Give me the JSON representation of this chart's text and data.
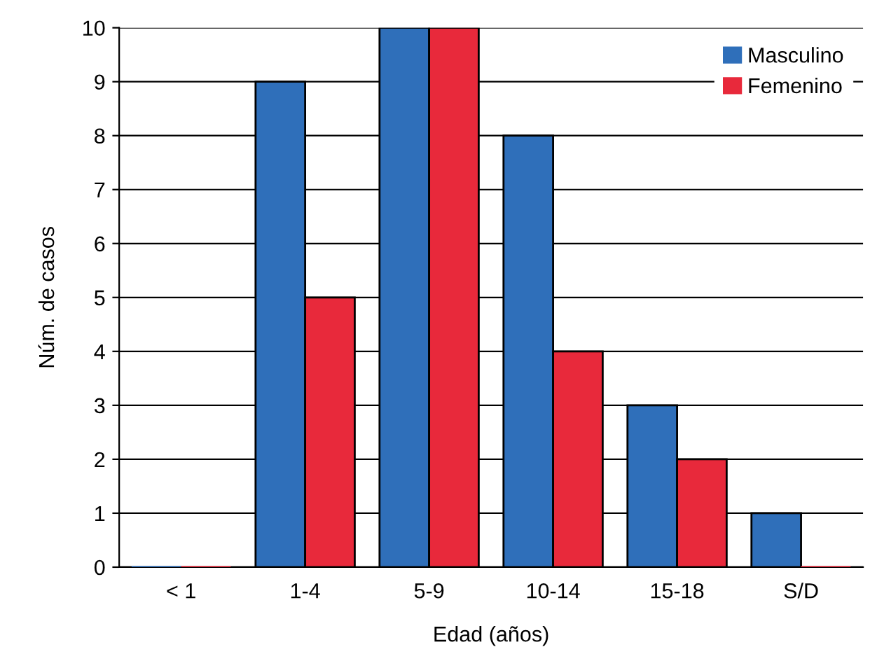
{
  "chart_data": {
    "type": "bar",
    "xlabel": "Edad (años)",
    "ylabel": "Núm. de casos",
    "categories": [
      "< 1",
      "1-4",
      "5-9",
      "10-14",
      "15-18",
      "S/D"
    ],
    "series": [
      {
        "name": "Masculino",
        "color": "#2f6fba",
        "values": [
          0,
          9,
          10,
          8,
          3,
          1
        ]
      },
      {
        "name": "Femenino",
        "color": "#e8293b",
        "values": [
          0,
          5,
          10,
          4,
          2,
          0
        ]
      }
    ],
    "ylim": [
      0,
      10
    ],
    "yticks": [
      0,
      1,
      2,
      3,
      4,
      5,
      6,
      7,
      8,
      9,
      10
    ],
    "grid": "y",
    "legend": "top right"
  }
}
